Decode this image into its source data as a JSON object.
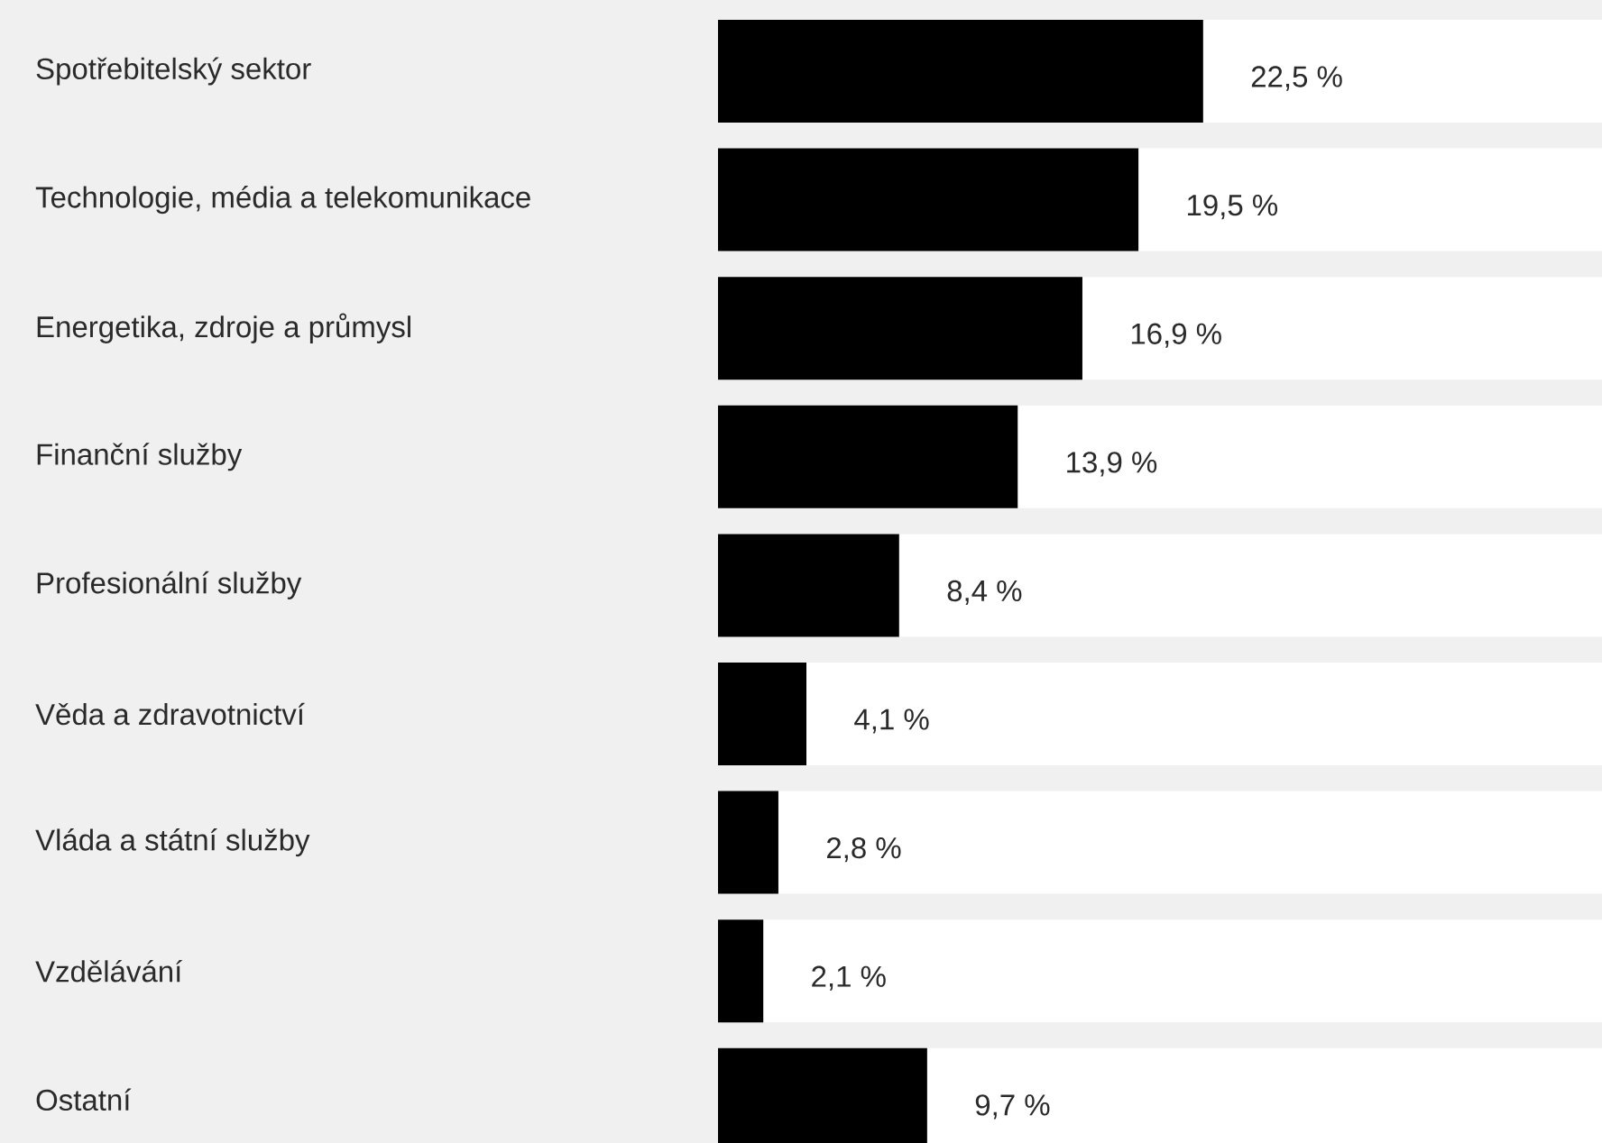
{
  "chart_data": {
    "type": "bar",
    "orientation": "horizontal",
    "categories": [
      "Spotřebitelský sektor",
      "Technologie, média a telekomunikace",
      "Energetika, zdroje a průmysl",
      "Finanční služby",
      "Profesionální služby",
      "Věda a zdravotnictví",
      "Vláda a státní služby",
      "Vzdělávání",
      "Ostatní"
    ],
    "values": [
      22.5,
      19.5,
      16.9,
      13.9,
      8.4,
      4.1,
      2.8,
      2.1,
      9.7
    ],
    "value_labels": [
      "22,5 %",
      "19,5 %",
      "16,9 %",
      "13,9 %",
      "8,4 %",
      "4,1 %",
      "2,8 %",
      "2,1 %",
      "9,7 %"
    ],
    "color": "#000000",
    "xlim": [
      0,
      41
    ],
    "tick_labels": "y"
  }
}
